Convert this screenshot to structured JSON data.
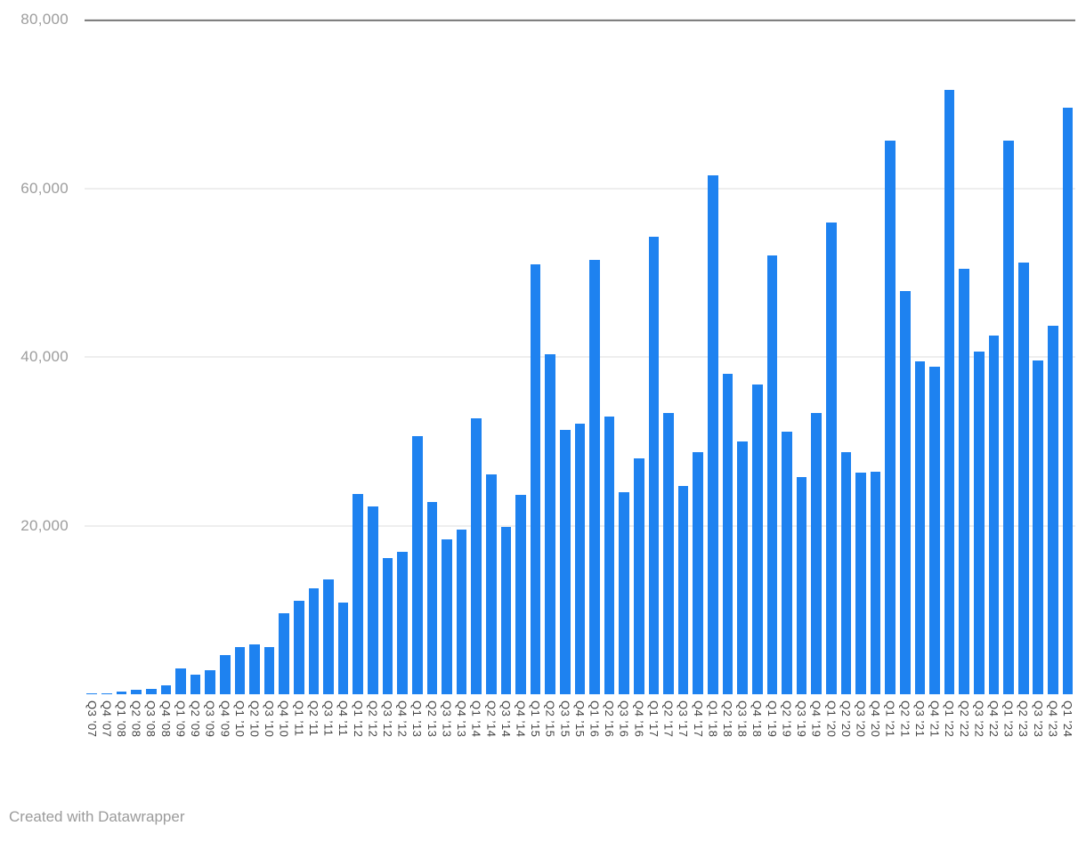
{
  "chart_data": {
    "type": "bar",
    "title": "",
    "xlabel": "",
    "ylabel": "",
    "ylim": [
      0,
      80000
    ],
    "grid": true,
    "legend": "none",
    "y_ticks": [
      {
        "value": 20000,
        "label": "20,000"
      },
      {
        "value": 40000,
        "label": "40,000"
      },
      {
        "value": 60000,
        "label": "60,000"
      },
      {
        "value": 80000,
        "label": "80,000"
      }
    ],
    "categories": [
      "Q3 ’07",
      "Q4 ’07",
      "Q1 ’08",
      "Q2 ’08",
      "Q3 ’08",
      "Q4 ’08",
      "Q1 ’09",
      "Q2 ’09",
      "Q3 ’09",
      "Q4 ’09",
      "Q1 ’10",
      "Q2 ’10",
      "Q3 ’10",
      "Q4 ’10",
      "Q1 ’11",
      "Q2 ’11",
      "Q3 ’11",
      "Q4 ’11",
      "Q1 ’12",
      "Q2 ’12",
      "Q3 ’12",
      "Q4 ’12",
      "Q1 ’13",
      "Q2 ’13",
      "Q3 ’13",
      "Q4 ’13",
      "Q1 ’14",
      "Q2 ’14",
      "Q3 ’14",
      "Q4 ’14",
      "Q1 ’15",
      "Q2 ’15",
      "Q3 ’15",
      "Q4 ’15",
      "Q1 ’16",
      "Q2 ’16",
      "Q3 ’16",
      "Q4 ’16",
      "Q1 ’17",
      "Q2 ’17",
      "Q3 ’17",
      "Q4 ’17",
      "Q1 ’18",
      "Q2 ’18",
      "Q3 ’18",
      "Q4 ’18",
      "Q1 ’19",
      "Q2 ’19",
      "Q3 ’19",
      "Q4 ’19",
      "Q1 ’20",
      "Q2 ’20",
      "Q3 ’20",
      "Q4 ’20",
      "Q1 ’21",
      "Q2 ’21",
      "Q3 ’21",
      "Q4 ’21",
      "Q1 ’22",
      "Q2 ’22",
      "Q3 ’22",
      "Q4 ’22",
      "Q1 ’23",
      "Q2 ’23",
      "Q3 ’23",
      "Q4 ’23",
      "Q1 ’24"
    ],
    "values": [
      100,
      150,
      350,
      500,
      650,
      1100,
      3100,
      2300,
      2800,
      4600,
      5600,
      5900,
      5600,
      9600,
      11100,
      12600,
      13600,
      10900,
      23800,
      22300,
      16200,
      16900,
      30600,
      22800,
      18400,
      19500,
      32700,
      26100,
      19800,
      23600,
      51000,
      40300,
      31300,
      32100,
      51500,
      32900,
      24000,
      28000,
      54300,
      33300,
      24700,
      28700,
      61500,
      38000,
      30000,
      36700,
      52000,
      31100,
      25800,
      33400,
      55900,
      28700,
      26300,
      26400,
      65600,
      47800,
      39500,
      38800,
      71700,
      50500,
      40600,
      42500,
      65700,
      51200,
      39600,
      43700,
      69600
    ]
  },
  "footer": {
    "text": "Created with Datawrapper"
  },
  "colors": {
    "bar": "#1E82F0",
    "grid": "#DDDDDD",
    "axis_line": "#111111",
    "y_tick_text": "#9D9D9D",
    "x_tick_text": "#444444",
    "footer_text": "#9B9B9B"
  }
}
